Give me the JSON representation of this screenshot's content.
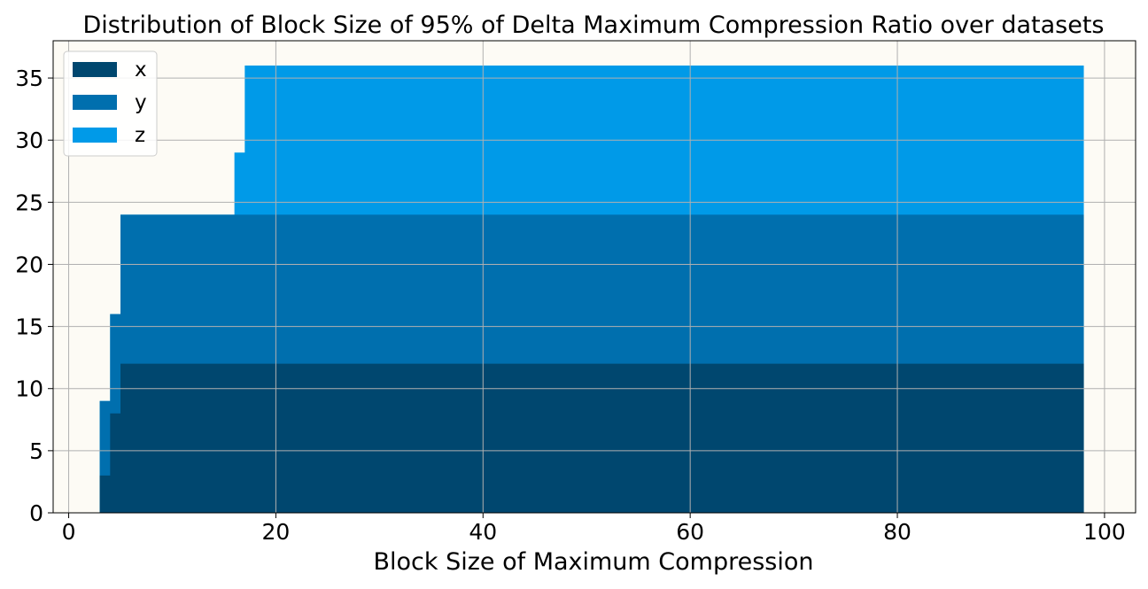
{
  "chart_data": {
    "type": "area",
    "title": "Distribution of Block Size of 95% of Delta Maximum Compression Ratio over datasets",
    "xlabel": "Block Size of Maximum Compression",
    "ylabel": "",
    "xlim": [
      -1.5,
      103
    ],
    "ylim": [
      0,
      38
    ],
    "xticks": [
      0,
      20,
      40,
      60,
      80,
      100
    ],
    "yticks": [
      0,
      5,
      10,
      15,
      20,
      25,
      30,
      35
    ],
    "grid": true,
    "stacked": true,
    "step": true,
    "x_end": 98,
    "legend_position": "top-left",
    "background_color": "#fdfbf5",
    "series": [
      {
        "name": "x",
        "color": "#00476f",
        "steps": [
          [
            3,
            3
          ],
          [
            4,
            8
          ],
          [
            5,
            12
          ]
        ]
      },
      {
        "name": "y",
        "color": "#006fae",
        "steps": [
          [
            3,
            9
          ],
          [
            4,
            16
          ],
          [
            5,
            24
          ]
        ]
      },
      {
        "name": "z",
        "color": "#009ae8",
        "steps": [
          [
            3,
            9
          ],
          [
            4,
            16
          ],
          [
            5,
            24
          ],
          [
            16,
            29
          ],
          [
            17,
            36
          ]
        ]
      }
    ]
  }
}
